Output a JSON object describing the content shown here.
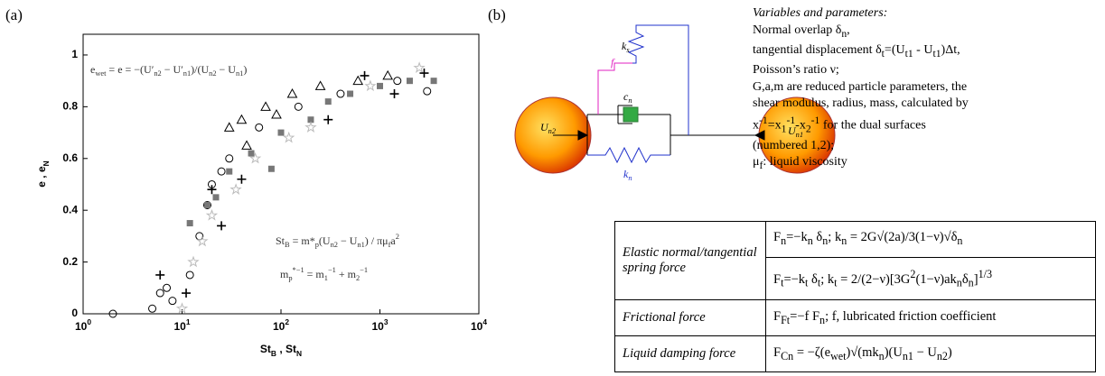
{
  "panel_a_label": "(a)",
  "panel_b_label": "(b)",
  "chart_data": {
    "type": "scatter",
    "log_x": true,
    "grid": false,
    "xlabel": "St_{B} , St_{N}",
    "ylabel": "e , e_{N}",
    "xlim": [
      1,
      10000
    ],
    "ylim": [
      0,
      1.08
    ],
    "xticks": [
      {
        "value": 1,
        "label": "10^{0}"
      },
      {
        "value": 10,
        "label": "10^{1}"
      },
      {
        "value": 100,
        "label": "10^{2}"
      },
      {
        "value": 1000,
        "label": "10^{3}"
      },
      {
        "value": 10000,
        "label": "10^{4}"
      }
    ],
    "yticks": [
      0,
      0.2,
      0.4,
      0.6,
      0.8,
      1
    ],
    "annotations": [
      "e_{wet} = e = −(U′_{n2} − U′_{n1})/(U_{n2} − U_{n1})",
      "St_{B} = m*_{p}(U_{n2} − U_{n1}) / πμ_{f}a^{2}",
      "m_{p}^{*−1} = m_{1}^{−1} + m_{2}^{−1}"
    ],
    "series": [
      {
        "marker": "circle",
        "color": "#000000",
        "x": [
          2,
          5,
          6,
          7,
          8,
          12,
          15,
          18,
          20,
          25,
          30,
          60,
          150,
          400,
          1500,
          3000
        ],
        "values": [
          0,
          0.02,
          0.08,
          0.1,
          0.05,
          0.15,
          0.3,
          0.42,
          0.5,
          0.55,
          0.6,
          0.72,
          0.8,
          0.85,
          0.9,
          0.86
        ]
      },
      {
        "marker": "triangle",
        "color": "#000000",
        "x": [
          30,
          40,
          45,
          70,
          90,
          130,
          250,
          600,
          1200
        ],
        "values": [
          0.72,
          0.75,
          0.65,
          0.8,
          0.77,
          0.85,
          0.88,
          0.9,
          0.92
        ]
      },
      {
        "marker": "square",
        "color": "#777777",
        "x": [
          12,
          18,
          22,
          30,
          50,
          80,
          100,
          200,
          300,
          500,
          1000,
          2000,
          3500
        ],
        "values": [
          0.35,
          0.42,
          0.45,
          0.55,
          0.62,
          0.56,
          0.7,
          0.75,
          0.82,
          0.85,
          0.88,
          0.9,
          0.9
        ]
      },
      {
        "marker": "star",
        "color": "#bbbbbb",
        "x": [
          10,
          13,
          16,
          20,
          35,
          55,
          120,
          200,
          800,
          2500
        ],
        "values": [
          0.02,
          0.2,
          0.28,
          0.38,
          0.48,
          0.6,
          0.68,
          0.72,
          0.88,
          0.95
        ]
      },
      {
        "marker": "cross",
        "color": "#000000",
        "x": [
          6,
          11,
          20,
          25,
          40,
          300,
          700,
          1400,
          2800
        ],
        "values": [
          0.15,
          0.08,
          0.48,
          0.34,
          0.52,
          0.75,
          0.92,
          0.85,
          0.93
        ]
      }
    ]
  },
  "diagram": {
    "labels": [
      "U_{n2}",
      "U_{n1}",
      "k_{s}",
      "f",
      "c_{n}",
      "k_{n}"
    ]
  },
  "notes": [
    "Variables and parameters:",
    "Normal overlap δ_{n},",
    "tangential displacement δ_{t}=(U_{t1} - U_{t1})Δt,",
    "Poisson’s ratio ν;",
    "G,a,m are reduced particle parameters, the",
    "shear modulus, radius, mass, calculated by",
    "x^{-1}=x_{1}^{-1}-x_{2}^{-1} for the dual surfaces",
    "(numbered 1,2);",
    "μ_{f}: liquid viscosity"
  ],
  "table": {
    "rows": [
      [
        "Elastic normal/tangential spring force",
        "F_{n}=−k_{n} δ_{n}; k_{n} = 2G√(2a)/3(1−ν)√δ_{n}"
      ],
      [
        "",
        "F_{t}=−k_{t} δ_{t}; k_{t} = 2/(2−ν)[3G^{2}(1−ν)ak_{n}δ_{n}]^{1/3}"
      ],
      [
        "Frictional force",
        "F_{Ft}=−f F_{n}; f, lubricated friction coefficient"
      ],
      [
        "Liquid damping force",
        "F_{Cn} = −ζ(e_{wet})√(mk_{n})(U_{n1} − U_{n2})"
      ]
    ]
  }
}
